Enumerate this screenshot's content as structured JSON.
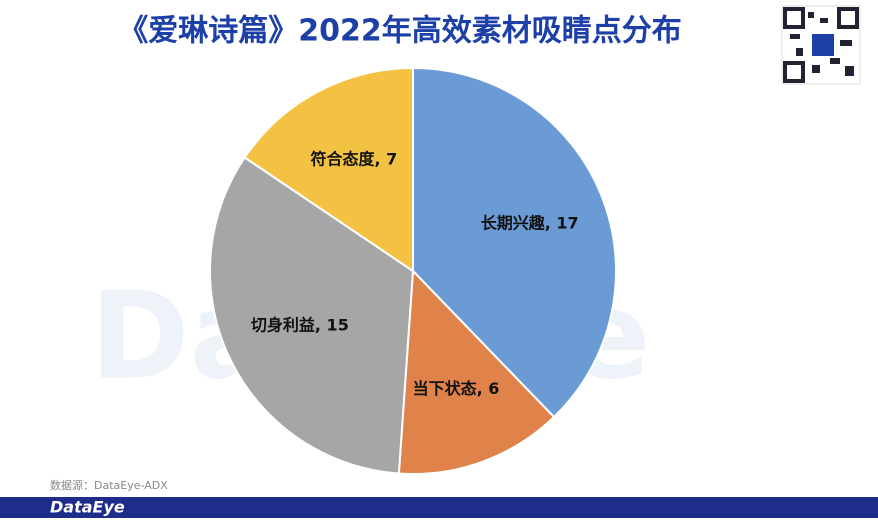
{
  "chart_data": {
    "type": "pie",
    "title": "《爱琳诗篇》2022年高效素材吸睛点分布",
    "values": [
      17,
      6,
      15,
      7
    ],
    "value_labels": [
      "长期兴趣, 17",
      "当下状态, 6",
      "切身利益, 15",
      "符合态度, 7"
    ],
    "colors": [
      "#6b9bd5",
      "#e0834a",
      "#a6a6a6",
      "#f4c243"
    ],
    "source": "数据源：DataEye-ADX",
    "watermark": "DataEye",
    "footer_brand": "DataEye"
  }
}
